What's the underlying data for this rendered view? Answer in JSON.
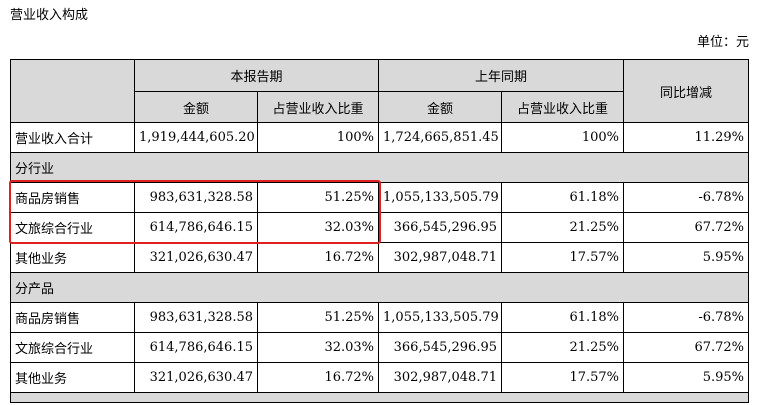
{
  "title": "营业收入构成",
  "unit": "单位：元",
  "header": {
    "blank": "",
    "current_period": "本报告期",
    "prior_period": "上年同期",
    "yoy_change": "同比增减",
    "amount": "金额",
    "share_of_revenue": "占营业收入比重"
  },
  "total_row": {
    "label": "营业收入合计",
    "cur_amount": "1,919,444,605.20",
    "cur_share": "100%",
    "prev_amount": "1,724,665,851.45",
    "prev_share": "100%",
    "change": "11.29%"
  },
  "sections": [
    {
      "title": "分行业",
      "rows": [
        {
          "label": "商品房销售",
          "cur_amount": "983,631,328.58",
          "cur_share": "51.25%",
          "prev_amount": "1,055,133,505.79",
          "prev_share": "61.18%",
          "change": "-6.78%"
        },
        {
          "label": "文旅综合行业",
          "cur_amount": "614,786,646.15",
          "cur_share": "32.03%",
          "prev_amount": "366,545,296.95",
          "prev_share": "21.25%",
          "change": "67.72%"
        },
        {
          "label": "其他业务",
          "cur_amount": "321,026,630.47",
          "cur_share": "16.72%",
          "prev_amount": "302,987,048.71",
          "prev_share": "17.57%",
          "change": "5.95%"
        }
      ]
    },
    {
      "title": "分产品",
      "rows": [
        {
          "label": "商品房销售",
          "cur_amount": "983,631,328.58",
          "cur_share": "51.25%",
          "prev_amount": "1,055,133,505.79",
          "prev_share": "61.18%",
          "change": "-6.78%"
        },
        {
          "label": "文旅综合行业",
          "cur_amount": "614,786,646.15",
          "cur_share": "32.03%",
          "prev_amount": "366,545,296.95",
          "prev_share": "21.25%",
          "change": "67.72%"
        },
        {
          "label": "其他业务",
          "cur_amount": "321,026,630.47",
          "cur_share": "16.72%",
          "prev_amount": "302,987,048.71",
          "prev_share": "17.57%",
          "change": "5.95%"
        }
      ]
    }
  ],
  "highlight_color": "#e02020",
  "header_bg": "#d9d9d9"
}
